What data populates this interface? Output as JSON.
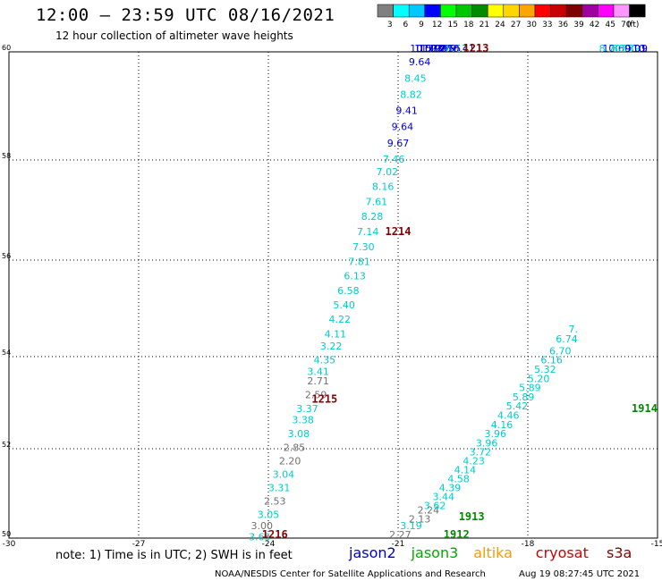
{
  "header": {
    "title": "12:00 – 23:59 UTC 08/16/2021",
    "subtitle": "12 hour collection of altimeter wave heights"
  },
  "colorbar": {
    "unit": "(ft)",
    "bins": [
      {
        "label": "3",
        "color": "#808080"
      },
      {
        "label": "6",
        "color": "#00ffff"
      },
      {
        "label": "9",
        "color": "#00c8ff"
      },
      {
        "label": "12",
        "color": "#0000ff"
      },
      {
        "label": "15",
        "color": "#00ff00"
      },
      {
        "label": "18",
        "color": "#00c800"
      },
      {
        "label": "21",
        "color": "#008c00"
      },
      {
        "label": "24",
        "color": "#ffff00"
      },
      {
        "label": "27",
        "color": "#ffd700"
      },
      {
        "label": "30",
        "color": "#ffa500"
      },
      {
        "label": "33",
        "color": "#ff0000"
      },
      {
        "label": "36",
        "color": "#c80000"
      },
      {
        "label": "39",
        "color": "#800000"
      },
      {
        "label": "42",
        "color": "#a000a0"
      },
      {
        "label": "45",
        "color": "#ff00ff"
      },
      {
        "label": "70",
        "color": "#ff96ff"
      },
      {
        "label": "",
        "color": "#000000"
      }
    ]
  },
  "legend": {
    "note": "note: 1) Time is in UTC; 2) SWH is in feet",
    "satellites": [
      {
        "name": "jason2",
        "color": "#0000cc"
      },
      {
        "name": "jason3",
        "color": "#00aa00"
      },
      {
        "name": "altika",
        "color": "#ff9900"
      },
      {
        "name": "cryosat",
        "color": "#cc0000"
      },
      {
        "name": "s3a",
        "color": "#880000"
      }
    ]
  },
  "footer": {
    "credit": "NOAA/NESDIS Center for Satellite Applications and Research",
    "timestamp": "Aug 19 08:27:45 UTC 2021"
  },
  "colors": {
    "gray": "#707070",
    "cyan": "#00cccc",
    "blue": "#0000cc",
    "time": "#880000",
    "green": "#008800"
  },
  "chart_data": {
    "type": "scatter",
    "xlim": [
      -30,
      -15
    ],
    "ylim": [
      50,
      60
    ],
    "xticks": [
      "-30",
      "-27",
      "-24",
      "-21",
      "-18",
      "-15"
    ],
    "yticks": [
      "50",
      "52",
      "54",
      "56",
      "58",
      "60"
    ],
    "grid": true,
    "series": [
      {
        "points": [
          {
            "lon": -24.2,
            "lat": 49.95,
            "v": "3.65",
            "c": "cyan"
          },
          {
            "lon": -24.15,
            "lat": 50.2,
            "v": "3.00",
            "c": "gray"
          },
          {
            "lon": -24.0,
            "lat": 50.45,
            "v": "3.05",
            "c": "cyan"
          },
          {
            "lon": -23.85,
            "lat": 50.75,
            "v": "2.53",
            "c": "gray"
          },
          {
            "lon": -23.75,
            "lat": 51.05,
            "v": "3.31",
            "c": "cyan"
          },
          {
            "lon": -23.65,
            "lat": 51.35,
            "v": "3.04",
            "c": "cyan"
          },
          {
            "lon": -23.5,
            "lat": 51.65,
            "v": "2.20",
            "c": "gray"
          },
          {
            "lon": -23.4,
            "lat": 51.95,
            "v": "2.85",
            "c": "gray"
          },
          {
            "lon": -23.3,
            "lat": 52.25,
            "v": "3.08",
            "c": "cyan"
          },
          {
            "lon": -23.2,
            "lat": 52.55,
            "v": "3.38",
            "c": "cyan"
          },
          {
            "lon": -23.1,
            "lat": 52.8,
            "v": "3.37",
            "c": "cyan"
          },
          {
            "lon": -22.9,
            "lat": 53.1,
            "v": "2.59",
            "c": "gray"
          },
          {
            "lon": -22.85,
            "lat": 53.4,
            "v": "2.71",
            "c": "gray"
          },
          {
            "lon": -22.85,
            "lat": 53.6,
            "v": "3.41",
            "c": "cyan"
          },
          {
            "lon": -22.7,
            "lat": 53.85,
            "v": "4.35",
            "c": "cyan"
          },
          {
            "lon": -22.55,
            "lat": 54.15,
            "v": "3.22",
            "c": "cyan"
          },
          {
            "lon": -22.45,
            "lat": 54.4,
            "v": "4.11",
            "c": "cyan"
          },
          {
            "lon": -22.35,
            "lat": 54.7,
            "v": "4.22",
            "c": "cyan"
          },
          {
            "lon": -22.25,
            "lat": 55.0,
            "v": "5.40",
            "c": "cyan"
          },
          {
            "lon": -22.15,
            "lat": 55.3,
            "v": "6.58",
            "c": "cyan"
          },
          {
            "lon": -22.0,
            "lat": 55.6,
            "v": "6.13",
            "c": "cyan"
          },
          {
            "lon": -21.9,
            "lat": 55.9,
            "v": "7.81",
            "c": "cyan"
          },
          {
            "lon": -21.8,
            "lat": 56.2,
            "v": "7.30",
            "c": "cyan"
          },
          {
            "lon": -21.7,
            "lat": 56.5,
            "v": "7.14",
            "c": "cyan"
          },
          {
            "lon": -21.6,
            "lat": 56.8,
            "v": "8.28",
            "c": "cyan"
          },
          {
            "lon": -21.5,
            "lat": 57.1,
            "v": "7.61",
            "c": "cyan"
          },
          {
            "lon": -21.35,
            "lat": 57.4,
            "v": "8.16",
            "c": "cyan"
          },
          {
            "lon": -21.25,
            "lat": 57.7,
            "v": "7.02",
            "c": "cyan"
          },
          {
            "lon": -21.1,
            "lat": 57.95,
            "v": "7.46",
            "c": "cyan"
          },
          {
            "lon": -21.0,
            "lat": 58.25,
            "v": "9.67",
            "c": "blue"
          },
          {
            "lon": -20.9,
            "lat": 58.55,
            "v": "9.64",
            "c": "blue"
          },
          {
            "lon": -20.8,
            "lat": 58.85,
            "v": "9.41",
            "c": "blue"
          },
          {
            "lon": -20.7,
            "lat": 59.15,
            "v": "8.82",
            "c": "cyan"
          },
          {
            "lon": -20.6,
            "lat": 59.45,
            "v": "8.45",
            "c": "cyan"
          },
          {
            "lon": -20.5,
            "lat": 59.75,
            "v": "9.64",
            "c": "blue"
          },
          {
            "lon": -20.4,
            "lat": 60.05,
            "v": "10.53",
            "c": "blue"
          },
          {
            "lon": -20.3,
            "lat": 60.35,
            "v": "11.03",
            "c": "blue"
          },
          {
            "lon": -20.2,
            "lat": 60.6,
            "v": "10.98",
            "c": "blue"
          },
          {
            "lon": -20.1,
            "lat": 60.9,
            "v": "11.26",
            "c": "blue"
          },
          {
            "lon": -20.0,
            "lat": 61.2,
            "v": "9.23",
            "c": "blue"
          },
          {
            "lon": -19.9,
            "lat": 61.5,
            "v": "9.79",
            "c": "blue"
          },
          {
            "lon": -19.8,
            "lat": 61.8,
            "v": "9.55",
            "c": "blue"
          },
          {
            "lon": -19.65,
            "lat": 62.1,
            "v": "8.13",
            "c": "cyan"
          },
          {
            "lon": -19.55,
            "lat": 62.4,
            "v": "10.41",
            "c": "blue"
          },
          {
            "lon": -16.1,
            "lat": 62.4,
            "v": "8.70",
            "c": "cyan"
          },
          {
            "lon": -15.95,
            "lat": 62.1,
            "v": "10.60",
            "c": "blue"
          },
          {
            "lon": -15.8,
            "lat": 61.8,
            "v": "8.57",
            "c": "cyan"
          },
          {
            "lon": -15.65,
            "lat": 61.5,
            "v": "8.39",
            "c": "cyan"
          },
          {
            "lon": -15.5,
            "lat": 61.2,
            "v": "9.01",
            "c": "blue"
          },
          {
            "lon": -15.4,
            "lat": 60.9,
            "v": "10.",
            "c": "blue"
          },
          {
            "lon": -15.3,
            "lat": 60.6,
            "v": "9",
            "c": "blue"
          }
        ]
      },
      {
        "points": [
          {
            "lon": -20.95,
            "lat": 50.0,
            "v": "2.27",
            "c": "gray"
          },
          {
            "lon": -20.7,
            "lat": 50.2,
            "v": "3.19",
            "c": "cyan"
          },
          {
            "lon": -20.5,
            "lat": 50.35,
            "v": "2.13",
            "c": "gray"
          },
          {
            "lon": -20.3,
            "lat": 50.55,
            "v": "2.24",
            "c": "gray"
          },
          {
            "lon": -20.15,
            "lat": 50.65,
            "v": "3.62",
            "c": "cyan"
          },
          {
            "lon": -19.95,
            "lat": 50.85,
            "v": "3.44",
            "c": "cyan"
          },
          {
            "lon": -19.8,
            "lat": 51.05,
            "v": "4.39",
            "c": "cyan"
          },
          {
            "lon": -19.6,
            "lat": 51.25,
            "v": "4.58",
            "c": "cyan"
          },
          {
            "lon": -19.45,
            "lat": 51.45,
            "v": "4.14",
            "c": "cyan"
          },
          {
            "lon": -19.25,
            "lat": 51.65,
            "v": "4.23",
            "c": "cyan"
          },
          {
            "lon": -19.1,
            "lat": 51.85,
            "v": "3.72",
            "c": "cyan"
          },
          {
            "lon": -18.95,
            "lat": 52.05,
            "v": "3.96",
            "c": "cyan"
          },
          {
            "lon": -18.75,
            "lat": 52.25,
            "v": "3.96",
            "c": "cyan"
          },
          {
            "lon": -18.6,
            "lat": 52.45,
            "v": "4.16",
            "c": "cyan"
          },
          {
            "lon": -18.45,
            "lat": 52.65,
            "v": "4.46",
            "c": "cyan"
          },
          {
            "lon": -18.25,
            "lat": 52.85,
            "v": "5.42",
            "c": "cyan"
          },
          {
            "lon": -18.1,
            "lat": 53.05,
            "v": "5.89",
            "c": "cyan"
          },
          {
            "lon": -17.95,
            "lat": 53.25,
            "v": "5.89",
            "c": "cyan"
          },
          {
            "lon": -17.75,
            "lat": 53.45,
            "v": "5.20",
            "c": "cyan"
          },
          {
            "lon": -17.6,
            "lat": 53.65,
            "v": "5.32",
            "c": "cyan"
          },
          {
            "lon": -17.45,
            "lat": 53.85,
            "v": "6.16",
            "c": "cyan"
          },
          {
            "lon": -17.25,
            "lat": 54.05,
            "v": "6.70",
            "c": "cyan"
          },
          {
            "lon": -17.1,
            "lat": 54.3,
            "v": "6.74",
            "c": "cyan"
          },
          {
            "lon": -16.95,
            "lat": 54.5,
            "v": "7.",
            "c": "cyan"
          }
        ]
      }
    ],
    "time_labels": [
      {
        "lon": -19.2,
        "lat": 60.0,
        "v": "1213"
      },
      {
        "lon": -21.0,
        "lat": 56.5,
        "v": "1214"
      },
      {
        "lon": -22.7,
        "lat": 53.0,
        "v": "1215"
      },
      {
        "lon": -23.85,
        "lat": 50.0,
        "v": "1216"
      },
      {
        "lon": -15.3,
        "lat": 52.8,
        "v": "1914"
      },
      {
        "lon": -19.3,
        "lat": 50.4,
        "v": "1913"
      },
      {
        "lon": -19.65,
        "lat": 50.0,
        "v": "1912"
      }
    ]
  }
}
